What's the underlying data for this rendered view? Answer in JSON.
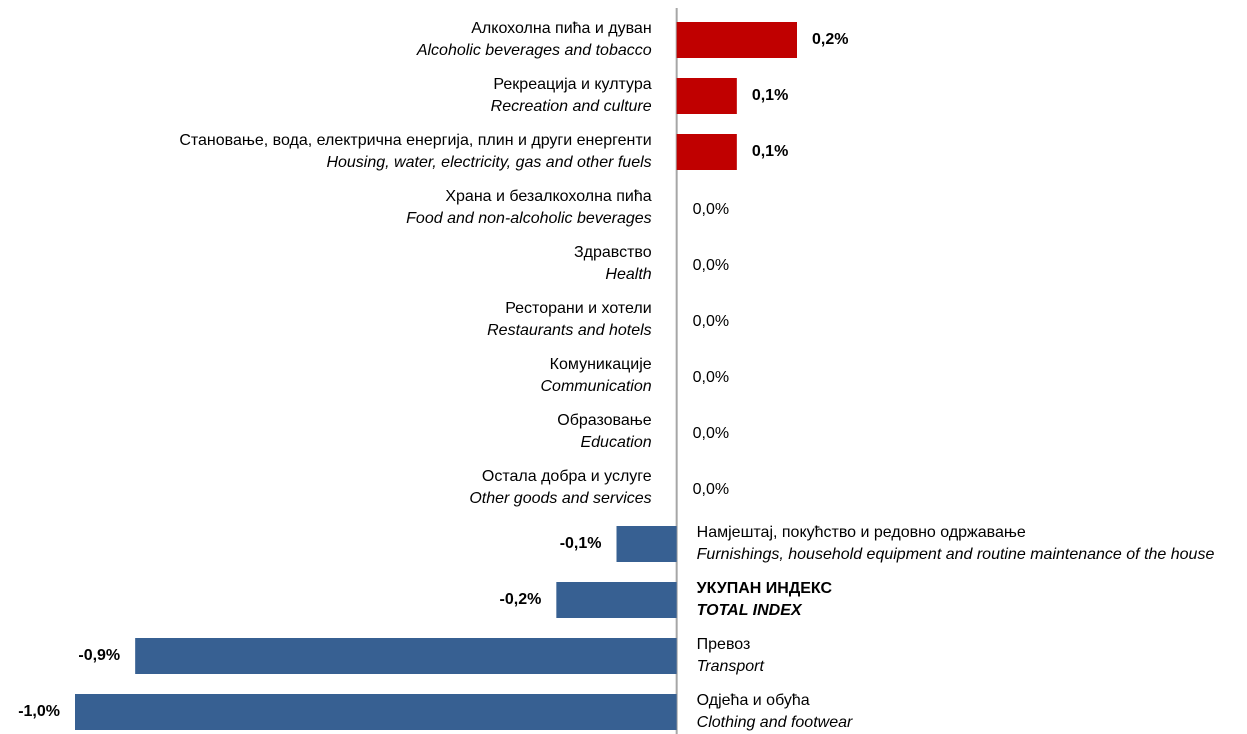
{
  "chart_data": {
    "type": "barh",
    "categories": [
      {
        "sr": "Алкохолна пића и дуван",
        "en": "Alcoholic beverages and tobacco"
      },
      {
        "sr": "Рекреација и култура",
        "en": "Recreation and culture"
      },
      {
        "sr": "Становање, вода, електрична енергија, плин и други енергенти",
        "en": "Housing, water, electricity, gas and other fuels"
      },
      {
        "sr": "Храна и безалкохолна пића",
        "en": "Food and non-alcoholic beverages"
      },
      {
        "sr": "Здравство",
        "en": "Health"
      },
      {
        "sr": "Ресторани и хотели",
        "en": "Restaurants and hotels"
      },
      {
        "sr": "Комуникације",
        "en": "Communication"
      },
      {
        "sr": "Образовање",
        "en": "Education"
      },
      {
        "sr": "Остала добра и услуге",
        "en": "Other goods and services"
      },
      {
        "sr": "Намјештај, покућство и редовно одржавање",
        "en": "Furnishings, household equipment and routine maintenance of the house"
      },
      {
        "sr": "УКУПАН ИНДЕКС",
        "en": "TOTAL INDEX",
        "bold": true
      },
      {
        "sr": "Превоз",
        "en": "Transport"
      },
      {
        "sr": "Одјећа и обућа",
        "en": "Clothing and footwear"
      }
    ],
    "values": [
      0.2,
      0.1,
      0.1,
      0.0,
      0.0,
      0.0,
      0.0,
      0.0,
      0.0,
      -0.1,
      -0.2,
      -0.9,
      -1.0
    ],
    "value_labels": [
      "0,2%",
      "0,1%",
      "0,1%",
      "0,0%",
      "0,0%",
      "0,0%",
      "0,0%",
      "0,0%",
      "0,0%",
      "-0,1%",
      "-0,2%",
      "-0,9%",
      "-1,0%"
    ],
    "positive_color": "#c00000",
    "negative_color": "#376092",
    "xlim": [
      -1.0,
      0.2
    ]
  }
}
